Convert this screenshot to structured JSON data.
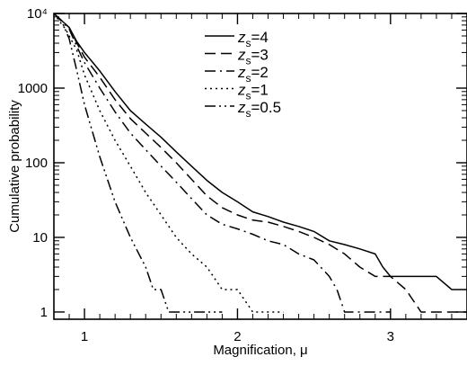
{
  "chart_data": {
    "type": "line",
    "title": "",
    "xlabel": "Magnification, μ",
    "ylabel": "Cumulative probability",
    "xscale": "linear",
    "yscale": "log",
    "xlim": [
      0.8,
      3.5
    ],
    "ylim": [
      0.8,
      10000
    ],
    "grid": false,
    "legend_position": "top-center",
    "x_ticks": [
      {
        "value": 1,
        "label": "1"
      },
      {
        "value": 2,
        "label": "2"
      },
      {
        "value": 3,
        "label": "3"
      }
    ],
    "y_ticks": [
      {
        "value": 1,
        "label": "1"
      },
      {
        "value": 10,
        "label": "10"
      },
      {
        "value": 100,
        "label": "100"
      },
      {
        "value": 1000,
        "label": "1000"
      },
      {
        "value": 10000,
        "label": "10⁴"
      }
    ],
    "series": [
      {
        "name": "z_s=4",
        "legend": {
          "var": "z",
          "sub": "s",
          "value": "=4"
        },
        "dash": "solid",
        "points": [
          [
            0.8,
            10000
          ],
          [
            0.9,
            6500
          ],
          [
            0.95,
            4200
          ],
          [
            1.0,
            3000
          ],
          [
            1.1,
            1700
          ],
          [
            1.2,
            900
          ],
          [
            1.3,
            500
          ],
          [
            1.4,
            330
          ],
          [
            1.5,
            220
          ],
          [
            1.6,
            140
          ],
          [
            1.7,
            90
          ],
          [
            1.8,
            58
          ],
          [
            1.9,
            40
          ],
          [
            2.0,
            30
          ],
          [
            2.1,
            22
          ],
          [
            2.2,
            19
          ],
          [
            2.3,
            16
          ],
          [
            2.4,
            14
          ],
          [
            2.5,
            12
          ],
          [
            2.6,
            9
          ],
          [
            2.7,
            8
          ],
          [
            2.8,
            7
          ],
          [
            2.9,
            6
          ],
          [
            2.95,
            4
          ],
          [
            3.0,
            3
          ],
          [
            3.2,
            3
          ],
          [
            3.3,
            3
          ],
          [
            3.4,
            2
          ],
          [
            3.5,
            2
          ]
        ]
      },
      {
        "name": "z_s=3",
        "legend": {
          "var": "z",
          "sub": "s",
          "value": "=3"
        },
        "dash": "dashed",
        "points": [
          [
            0.8,
            10000
          ],
          [
            0.9,
            6500
          ],
          [
            0.95,
            4000
          ],
          [
            1.0,
            2600
          ],
          [
            1.1,
            1400
          ],
          [
            1.2,
            700
          ],
          [
            1.3,
            390
          ],
          [
            1.4,
            250
          ],
          [
            1.5,
            160
          ],
          [
            1.6,
            100
          ],
          [
            1.7,
            60
          ],
          [
            1.8,
            36
          ],
          [
            1.9,
            25
          ],
          [
            2.0,
            20
          ],
          [
            2.1,
            17
          ],
          [
            2.2,
            16
          ],
          [
            2.3,
            14
          ],
          [
            2.4,
            12
          ],
          [
            2.5,
            10
          ],
          [
            2.6,
            8
          ],
          [
            2.7,
            6
          ],
          [
            2.8,
            4
          ],
          [
            2.9,
            3
          ],
          [
            3.0,
            3
          ],
          [
            3.1,
            2
          ],
          [
            3.2,
            1
          ],
          [
            3.5,
            1
          ]
        ]
      },
      {
        "name": "z_s=2",
        "legend": {
          "var": "z",
          "sub": "s",
          "value": "=2"
        },
        "dash": "dashdot",
        "points": [
          [
            0.8,
            10000
          ],
          [
            0.9,
            6200
          ],
          [
            0.95,
            3600
          ],
          [
            1.0,
            2200
          ],
          [
            1.1,
            1000
          ],
          [
            1.2,
            480
          ],
          [
            1.3,
            250
          ],
          [
            1.4,
            150
          ],
          [
            1.5,
            90
          ],
          [
            1.6,
            55
          ],
          [
            1.7,
            33
          ],
          [
            1.8,
            20
          ],
          [
            1.9,
            15
          ],
          [
            2.0,
            13
          ],
          [
            2.1,
            11
          ],
          [
            2.2,
            9
          ],
          [
            2.3,
            8
          ],
          [
            2.4,
            6
          ],
          [
            2.5,
            5
          ],
          [
            2.6,
            3
          ],
          [
            2.65,
            2
          ],
          [
            2.7,
            1
          ],
          [
            3.0,
            1
          ]
        ]
      },
      {
        "name": "z_s=1",
        "legend": {
          "var": "z",
          "sub": "s",
          "value": "=1"
        },
        "dash": "dotted",
        "points": [
          [
            0.8,
            10000
          ],
          [
            0.88,
            6000
          ],
          [
            0.95,
            3200
          ],
          [
            1.0,
            1500
          ],
          [
            1.1,
            500
          ],
          [
            1.2,
            200
          ],
          [
            1.3,
            90
          ],
          [
            1.4,
            40
          ],
          [
            1.5,
            20
          ],
          [
            1.6,
            10
          ],
          [
            1.7,
            6
          ],
          [
            1.8,
            4
          ],
          [
            1.9,
            2
          ],
          [
            2.0,
            2
          ],
          [
            2.1,
            1
          ],
          [
            2.3,
            1
          ]
        ]
      },
      {
        "name": "z_s=0.5",
        "legend": {
          "var": "z",
          "sub": "s",
          "value": "=0.5"
        },
        "dash": "dashdotdot",
        "points": [
          [
            0.8,
            10000
          ],
          [
            0.85,
            8000
          ],
          [
            0.9,
            4600
          ],
          [
            0.95,
            1700
          ],
          [
            1.0,
            600
          ],
          [
            1.1,
            120
          ],
          [
            1.2,
            30
          ],
          [
            1.3,
            10
          ],
          [
            1.4,
            4
          ],
          [
            1.45,
            2
          ],
          [
            1.5,
            2
          ],
          [
            1.55,
            1
          ],
          [
            1.9,
            1
          ]
        ]
      }
    ]
  }
}
